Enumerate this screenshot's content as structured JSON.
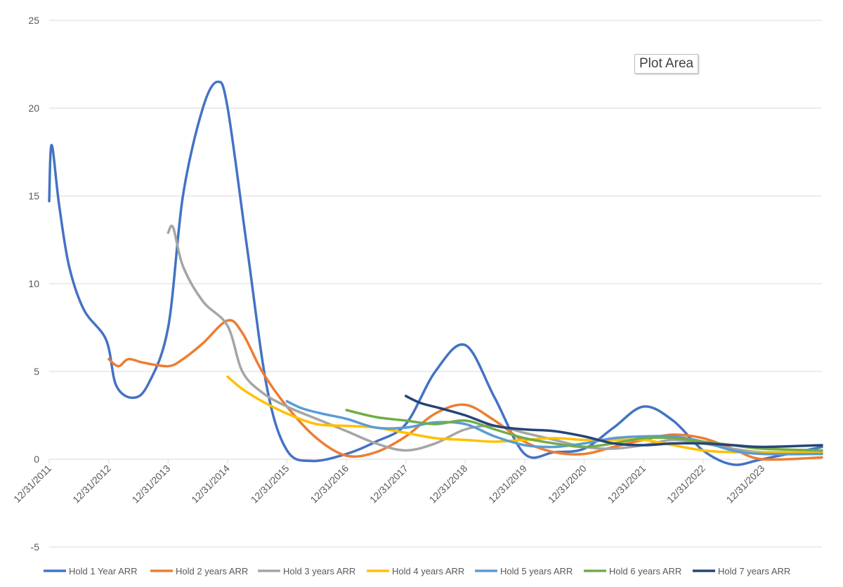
{
  "annotation": "Plot Area",
  "chart_data": {
    "type": "line",
    "title": "",
    "xlabel": "",
    "ylabel": "",
    "ylim": [
      -5,
      25
    ],
    "yticks": [
      -5,
      0,
      5,
      10,
      15,
      20,
      25
    ],
    "xlim": [
      "2011-12-31",
      "2024-12-31"
    ],
    "xticks": [
      "12/31/2011",
      "12/31/2012",
      "12/31/2013",
      "12/31/2014",
      "12/31/2015",
      "12/31/2016",
      "12/31/2017",
      "12/31/2018",
      "12/31/2019",
      "12/31/2020",
      "12/31/2021",
      "12/31/2022",
      "12/31/2023"
    ],
    "grid": "horizontal",
    "legend_position": "bottom",
    "series": [
      {
        "name": "Hold 1 Year ARR",
        "color": "#4472c4",
        "points": [
          [
            "2011-12-31",
            14.7
          ],
          [
            "2012-01-15",
            17.9
          ],
          [
            "2012-03-01",
            14.5
          ],
          [
            "2012-05-01",
            11.0
          ],
          [
            "2012-08-01",
            8.5
          ],
          [
            "2012-12-15",
            6.8
          ],
          [
            "2013-02-15",
            4.2
          ],
          [
            "2013-05-31",
            3.5
          ],
          [
            "2013-09-01",
            4.3
          ],
          [
            "2013-12-31",
            7.5
          ],
          [
            "2014-04-01",
            15.0
          ],
          [
            "2014-08-01",
            20.0
          ],
          [
            "2014-10-31",
            21.5
          ],
          [
            "2015-01-01",
            20.0
          ],
          [
            "2015-05-01",
            12.0
          ],
          [
            "2015-09-01",
            4.0
          ],
          [
            "2016-01-01",
            0.5
          ],
          [
            "2016-06-01",
            -0.1
          ],
          [
            "2016-12-31",
            0.3
          ],
          [
            "2017-06-30",
            1.0
          ],
          [
            "2017-12-31",
            2.0
          ],
          [
            "2018-06-30",
            5.0
          ],
          [
            "2018-12-31",
            6.5
          ],
          [
            "2019-06-30",
            3.5
          ],
          [
            "2019-12-31",
            0.3
          ],
          [
            "2020-06-30",
            0.4
          ],
          [
            "2020-12-31",
            0.6
          ],
          [
            "2021-06-30",
            1.8
          ],
          [
            "2021-12-31",
            3.0
          ],
          [
            "2022-06-30",
            2.2
          ],
          [
            "2022-12-31",
            0.5
          ],
          [
            "2023-06-30",
            -0.3
          ],
          [
            "2023-12-31",
            0.0
          ],
          [
            "2024-12-31",
            0.7
          ]
        ]
      },
      {
        "name": "Hold 2 years ARR",
        "color": "#ed7d31",
        "points": [
          [
            "2012-12-31",
            5.7
          ],
          [
            "2013-03-01",
            5.3
          ],
          [
            "2013-05-01",
            5.7
          ],
          [
            "2013-08-01",
            5.5
          ],
          [
            "2013-12-31",
            5.3
          ],
          [
            "2014-04-01",
            5.7
          ],
          [
            "2014-08-01",
            6.6
          ],
          [
            "2014-12-31",
            7.9
          ],
          [
            "2015-04-01",
            7.2
          ],
          [
            "2015-08-01",
            5.0
          ],
          [
            "2015-12-31",
            3.0
          ],
          [
            "2016-06-30",
            1.2
          ],
          [
            "2016-12-31",
            0.2
          ],
          [
            "2017-06-30",
            0.4
          ],
          [
            "2017-12-31",
            1.3
          ],
          [
            "2018-06-30",
            2.6
          ],
          [
            "2018-12-31",
            3.1
          ],
          [
            "2019-06-30",
            2.2
          ],
          [
            "2019-12-31",
            1.0
          ],
          [
            "2020-06-30",
            0.4
          ],
          [
            "2020-12-31",
            0.3
          ],
          [
            "2021-06-30",
            0.7
          ],
          [
            "2021-12-31",
            1.1
          ],
          [
            "2022-06-30",
            1.4
          ],
          [
            "2022-12-31",
            1.2
          ],
          [
            "2023-06-30",
            0.6
          ],
          [
            "2023-12-31",
            0.0
          ],
          [
            "2024-12-31",
            0.1
          ]
        ]
      },
      {
        "name": "Hold 3 years ARR",
        "color": "#a5a5a5",
        "points": [
          [
            "2013-12-31",
            12.9
          ],
          [
            "2014-01-31",
            13.2
          ],
          [
            "2014-04-01",
            11.0
          ],
          [
            "2014-08-01",
            9.0
          ],
          [
            "2014-12-31",
            7.6
          ],
          [
            "2015-04-01",
            5.0
          ],
          [
            "2015-08-01",
            3.8
          ],
          [
            "2015-12-31",
            3.0
          ],
          [
            "2016-06-30",
            2.3
          ],
          [
            "2016-12-31",
            1.6
          ],
          [
            "2017-06-30",
            0.9
          ],
          [
            "2017-12-31",
            0.5
          ],
          [
            "2018-06-30",
            0.9
          ],
          [
            "2018-12-31",
            1.7
          ],
          [
            "2019-06-30",
            1.9
          ],
          [
            "2019-12-31",
            1.5
          ],
          [
            "2020-06-30",
            1.1
          ],
          [
            "2020-12-31",
            0.7
          ],
          [
            "2021-06-30",
            0.6
          ],
          [
            "2021-12-31",
            0.8
          ],
          [
            "2022-06-30",
            1.1
          ],
          [
            "2022-12-31",
            0.9
          ],
          [
            "2023-06-30",
            0.6
          ],
          [
            "2023-12-31",
            0.4
          ],
          [
            "2024-12-31",
            0.3
          ]
        ]
      },
      {
        "name": "Hold 4 years ARR",
        "color": "#ffc000",
        "points": [
          [
            "2014-12-31",
            4.7
          ],
          [
            "2015-04-01",
            4.0
          ],
          [
            "2015-08-01",
            3.3
          ],
          [
            "2015-12-31",
            2.6
          ],
          [
            "2016-06-30",
            2.0
          ],
          [
            "2016-12-31",
            1.9
          ],
          [
            "2017-06-30",
            1.8
          ],
          [
            "2017-12-31",
            1.5
          ],
          [
            "2018-06-30",
            1.2
          ],
          [
            "2018-12-31",
            1.1
          ],
          [
            "2019-06-30",
            1.0
          ],
          [
            "2019-12-31",
            1.1
          ],
          [
            "2020-06-30",
            1.2
          ],
          [
            "2020-12-31",
            1.1
          ],
          [
            "2021-06-30",
            1.1
          ],
          [
            "2021-12-31",
            1.1
          ],
          [
            "2022-06-30",
            0.8
          ],
          [
            "2022-12-31",
            0.5
          ],
          [
            "2023-06-30",
            0.4
          ],
          [
            "2023-12-31",
            0.4
          ],
          [
            "2024-12-31",
            0.4
          ]
        ]
      },
      {
        "name": "Hold 5 years ARR",
        "color": "#5b9bd5",
        "points": [
          [
            "2015-12-31",
            3.3
          ],
          [
            "2016-04-01",
            2.9
          ],
          [
            "2016-08-01",
            2.6
          ],
          [
            "2016-12-31",
            2.3
          ],
          [
            "2017-06-30",
            1.8
          ],
          [
            "2017-12-31",
            1.8
          ],
          [
            "2018-06-30",
            2.1
          ],
          [
            "2018-12-31",
            2.0
          ],
          [
            "2019-06-30",
            1.3
          ],
          [
            "2019-12-31",
            0.8
          ],
          [
            "2020-06-30",
            0.7
          ],
          [
            "2020-12-31",
            0.9
          ],
          [
            "2021-06-30",
            1.2
          ],
          [
            "2021-12-31",
            1.3
          ],
          [
            "2022-06-30",
            1.3
          ],
          [
            "2022-12-31",
            1.0
          ],
          [
            "2023-06-30",
            0.5
          ],
          [
            "2023-12-31",
            0.3
          ],
          [
            "2024-12-31",
            0.3
          ]
        ]
      },
      {
        "name": "Hold 6 years ARR",
        "color": "#70ad47",
        "points": [
          [
            "2016-12-31",
            2.8
          ],
          [
            "2017-06-30",
            2.4
          ],
          [
            "2017-12-31",
            2.2
          ],
          [
            "2018-06-30",
            2.0
          ],
          [
            "2018-12-31",
            2.2
          ],
          [
            "2019-06-30",
            1.7
          ],
          [
            "2019-12-31",
            1.2
          ],
          [
            "2020-06-30",
            0.9
          ],
          [
            "2020-12-31",
            0.7
          ],
          [
            "2021-06-30",
            0.9
          ],
          [
            "2021-12-31",
            1.2
          ],
          [
            "2022-06-30",
            1.2
          ],
          [
            "2022-12-31",
            1.0
          ],
          [
            "2023-06-30",
            0.8
          ],
          [
            "2023-12-31",
            0.6
          ],
          [
            "2024-12-31",
            0.5
          ]
        ]
      },
      {
        "name": "Hold 7 years ARR",
        "color": "#264478",
        "points": [
          [
            "2017-12-31",
            3.6
          ],
          [
            "2018-04-01",
            3.2
          ],
          [
            "2018-08-01",
            2.9
          ],
          [
            "2018-12-31",
            2.5
          ],
          [
            "2019-06-30",
            1.9
          ],
          [
            "2019-12-31",
            1.7
          ],
          [
            "2020-06-30",
            1.6
          ],
          [
            "2020-12-31",
            1.3
          ],
          [
            "2021-06-30",
            0.9
          ],
          [
            "2021-12-31",
            0.8
          ],
          [
            "2022-06-30",
            0.9
          ],
          [
            "2022-12-31",
            0.9
          ],
          [
            "2023-06-30",
            0.8
          ],
          [
            "2023-12-31",
            0.7
          ],
          [
            "2024-12-31",
            0.8
          ]
        ]
      }
    ]
  }
}
